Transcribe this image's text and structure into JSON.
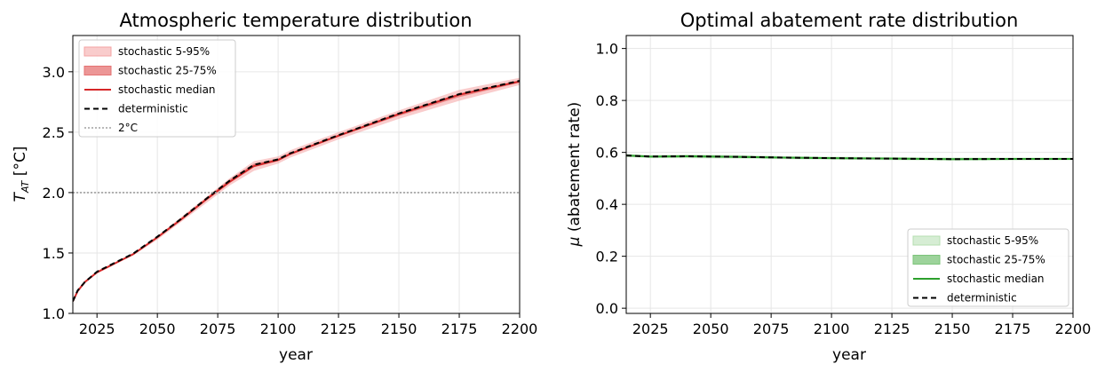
{
  "chart_data": [
    {
      "type": "line",
      "title": "Atmospheric temperature distribution",
      "xlabel": "year",
      "ylabel_main": "T",
      "ylabel_sub": "AT",
      "ylabel_unit": " [°C]",
      "xlim": [
        2015,
        2200
      ],
      "ylim": [
        1.0,
        3.3
      ],
      "xticks": [
        2025,
        2050,
        2075,
        2100,
        2125,
        2150,
        2175,
        2200
      ],
      "yticks": [
        1.0,
        1.5,
        2.0,
        2.5,
        3.0
      ],
      "grid": true,
      "legend_position": "top-left",
      "colors": {
        "band_outer": "#f4a3a3",
        "band_inner": "#e57373",
        "median": "#d62728",
        "deterministic": "#000000",
        "reference": "#a0a0a0"
      },
      "x": [
        2015,
        2017,
        2020,
        2025,
        2030,
        2040,
        2050,
        2060,
        2070,
        2080,
        2090,
        2100,
        2105,
        2125,
        2150,
        2175,
        2200
      ],
      "series": [
        {
          "name": "stochastic 5-95%",
          "kind": "band",
          "lower": [
            1.1,
            1.18,
            1.25,
            1.33,
            1.38,
            1.48,
            1.61,
            1.76,
            1.91,
            2.06,
            2.18,
            2.24,
            2.29,
            2.44,
            2.61,
            2.76,
            2.89
          ],
          "upper": [
            1.1,
            1.19,
            1.26,
            1.35,
            1.4,
            1.5,
            1.64,
            1.8,
            1.96,
            2.12,
            2.26,
            2.3,
            2.35,
            2.5,
            2.68,
            2.85,
            2.95
          ]
        },
        {
          "name": "stochastic 25-75%",
          "kind": "band",
          "lower": [
            1.1,
            1.18,
            1.26,
            1.34,
            1.39,
            1.49,
            1.625,
            1.775,
            1.93,
            2.08,
            2.21,
            2.26,
            2.31,
            2.465,
            2.635,
            2.79,
            2.91
          ],
          "upper": [
            1.1,
            1.19,
            1.26,
            1.345,
            1.395,
            1.495,
            1.635,
            1.79,
            1.95,
            2.11,
            2.24,
            2.28,
            2.33,
            2.48,
            2.66,
            2.82,
            2.93
          ]
        },
        {
          "name": "stochastic median",
          "kind": "line",
          "values": [
            1.1,
            1.185,
            1.26,
            1.34,
            1.39,
            1.49,
            1.63,
            1.78,
            1.94,
            2.09,
            2.22,
            2.27,
            2.32,
            2.47,
            2.65,
            2.81,
            2.92
          ]
        },
        {
          "name": "deterministic",
          "kind": "dashed",
          "values": [
            1.1,
            1.19,
            1.26,
            1.345,
            1.395,
            1.495,
            1.635,
            1.785,
            1.945,
            2.1,
            2.23,
            2.275,
            2.325,
            2.475,
            2.655,
            2.815,
            2.925
          ]
        },
        {
          "name": "2°C",
          "kind": "dotted",
          "constant": 2.0
        }
      ]
    },
    {
      "type": "line",
      "title": "Optimal abatement rate distribution",
      "xlabel": "year",
      "ylabel_main": "μ",
      "ylabel_unit": " (abatement rate)",
      "xlim": [
        2015,
        2200
      ],
      "ylim": [
        -0.02,
        1.05
      ],
      "xticks": [
        2025,
        2050,
        2075,
        2100,
        2125,
        2150,
        2175,
        2200
      ],
      "yticks": [
        0.0,
        0.2,
        0.4,
        0.6,
        0.8,
        1.0
      ],
      "grid": true,
      "legend_position": "bottom-right",
      "colors": {
        "band_outer": "#b5deb0",
        "band_inner": "#7cc47a",
        "median": "#2ca02c",
        "deterministic": "#000000"
      },
      "x": [
        2015,
        2025,
        2040,
        2060,
        2080,
        2100,
        2125,
        2150,
        2175,
        2200
      ],
      "series": [
        {
          "name": "stochastic 5-95%",
          "kind": "band",
          "lower": [
            0.582,
            0.578,
            0.578,
            0.576,
            0.574,
            0.572,
            0.57,
            0.568,
            0.569,
            0.57
          ],
          "upper": [
            0.594,
            0.59,
            0.592,
            0.59,
            0.586,
            0.584,
            0.582,
            0.58,
            0.58,
            0.58
          ]
        },
        {
          "name": "stochastic 25-75%",
          "kind": "band",
          "lower": [
            0.585,
            0.581,
            0.581,
            0.579,
            0.577,
            0.575,
            0.573,
            0.571,
            0.572,
            0.573
          ],
          "upper": [
            0.591,
            0.587,
            0.589,
            0.587,
            0.583,
            0.581,
            0.579,
            0.577,
            0.577,
            0.577
          ]
        },
        {
          "name": "stochastic median",
          "kind": "line",
          "values": [
            0.588,
            0.584,
            0.585,
            0.583,
            0.58,
            0.578,
            0.576,
            0.574,
            0.575,
            0.575
          ]
        },
        {
          "name": "deterministic",
          "kind": "dashed",
          "values": [
            0.588,
            0.584,
            0.585,
            0.583,
            0.58,
            0.578,
            0.576,
            0.574,
            0.575,
            0.575
          ]
        }
      ]
    }
  ]
}
